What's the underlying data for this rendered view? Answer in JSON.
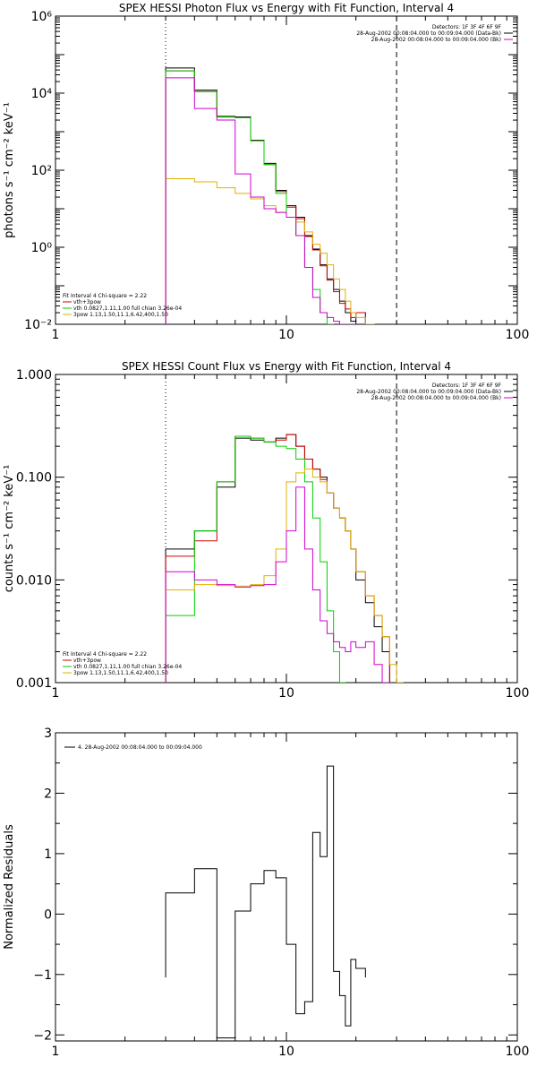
{
  "charts": [
    {
      "id": "photon",
      "title": "SPEX HESSI Photon Flux vs Energy with Fit Function, Interval 4",
      "ylabel": "photons s⁻¹ cm⁻² keV⁻¹",
      "xlim": [
        1,
        100
      ],
      "ylim": [
        0.01,
        1000000
      ],
      "yscale": "log",
      "xticks": [
        "1",
        "10",
        "100"
      ],
      "yticks": [
        {
          "v": 0.01,
          "label": "10⁻²"
        },
        {
          "v": 1,
          "label": "10⁰"
        },
        {
          "v": 100,
          "label": "10²"
        },
        {
          "v": 10000,
          "label": "10⁴"
        },
        {
          "v": 1000000,
          "label": "10⁶"
        }
      ],
      "legend_top": [
        "Detectors: 1F 3F 4F 6F 9F",
        "28-Aug-2002 00:08:04.000 to 00:09:04.000 (Data-Bk)",
        "28-Aug-2002 00:08:04.000 to 00:09:04.000 (Bk)"
      ],
      "legend_bottom": [
        "Fit Interval 4   Chi-square = 2.22",
        "vth+3pow",
        "vth 0.0827,1.11,1.00  full chian 3.26e-04",
        "3pow 1.13,1.50,11.1,6.42,400,1.50"
      ]
    },
    {
      "id": "count",
      "title": "SPEX HESSI Count Flux vs Energy with Fit Function, Interval 4",
      "ylabel": "counts s⁻¹ cm⁻² keV⁻¹",
      "xlim": [
        1,
        100
      ],
      "ylim": [
        0.001,
        1
      ],
      "yscale": "log",
      "xticks": [
        "1",
        "10",
        "100"
      ],
      "yticks": [
        {
          "v": 0.001,
          "label": "0.001"
        },
        {
          "v": 0.01,
          "label": "0.010"
        },
        {
          "v": 0.1,
          "label": "0.100"
        },
        {
          "v": 1,
          "label": "1.000"
        }
      ],
      "legend_top": [
        "Detectors: 1F 3F 4F 6F 9F",
        "28-Aug-2002 00:08:04.000 to 00:09:04.000 (Data-Bk)",
        "28-Aug-2002 00:08:04.000 to 00:09:04.000 (Bk)"
      ],
      "legend_bottom": [
        "Fit Interval 4   Chi-square = 2.22",
        "vth+3pow",
        "vth 0.0827,1.11,1.00  full chian 3.26e-04",
        "3pow 1.13,1.50,11.1,6.42,400,1.50"
      ]
    },
    {
      "id": "resid",
      "title": "",
      "ylabel": "Normalized Residuals",
      "xlim": [
        1,
        100
      ],
      "ylim": [
        -2.1,
        3
      ],
      "yscale": "linear",
      "xticks": [
        "1",
        "10",
        "100"
      ],
      "yticks": [
        {
          "v": -2,
          "label": "−2"
        },
        {
          "v": -1,
          "label": "−1"
        },
        {
          "v": 0,
          "label": "0"
        },
        {
          "v": 1,
          "label": "1"
        },
        {
          "v": 2,
          "label": "2"
        },
        {
          "v": 3,
          "label": "3"
        }
      ],
      "legend_top": [
        "4. 28-Aug-2002 00:08:04.000 to 00:09:04.000"
      ],
      "legend_bottom": []
    }
  ],
  "chart_data": [
    {
      "type": "line",
      "title": "SPEX HESSI Photon Flux vs Energy with Fit Function, Interval 4",
      "ylabel": "photons s⁻¹ cm⁻² keV⁻¹",
      "xscale": "log",
      "yscale": "log",
      "xlim": [
        1,
        100
      ],
      "ylim": [
        0.01,
        1000000
      ],
      "bin_edges": [
        3,
        4,
        5,
        6,
        7,
        8,
        9,
        10,
        11,
        12,
        13,
        14,
        15,
        16,
        17,
        18,
        19,
        20,
        22,
        24,
        26,
        28,
        30,
        32
      ],
      "vlines": [
        {
          "x": 3,
          "style": "dotted"
        },
        {
          "x": 30,
          "style": "dashed"
        }
      ],
      "series": [
        {
          "name": "28-Aug-2002 00:08:04.000 to 00:09:04.000 (Data-Bk)",
          "color": "#000000",
          "values": [
            45000,
            12000,
            2500,
            2400,
            600,
            150,
            30,
            12,
            6,
            2,
            0.9,
            0.35,
            0.15,
            0.08,
            0.04,
            0.02,
            0.012,
            0.02
          ]
        },
        {
          "name": "vth+3pow",
          "color": "#d00000",
          "values": [
            38000,
            11000,
            2400,
            2300,
            580,
            140,
            28,
            11,
            5.5,
            1.9,
            0.85,
            0.33,
            0.14,
            0.07,
            0.035,
            0.025,
            0.015,
            0.02,
            0.01
          ]
        },
        {
          "name": "vth 0.0827,1.11,1.00  full chian 3.26e-04",
          "color": "#00d000",
          "values": [
            38000,
            11000,
            2400,
            2300,
            580,
            140,
            25,
            6,
            2,
            0.3,
            0.08,
            0.02,
            0.01
          ]
        },
        {
          "name": "3pow 1.13,1.50,11.1,6.42,400,1.50",
          "color": "#e0b000",
          "values": [
            60,
            50,
            35,
            25,
            18,
            12,
            8,
            6,
            4.5,
            2.5,
            1.2,
            0.7,
            0.35,
            0.15,
            0.08,
            0.04,
            0.02,
            0.015,
            0.01
          ]
        },
        {
          "name": "28-Aug-2002 00:08:04.000 to 00:09:04.000 (Bk)",
          "color": "#d000d0",
          "values": [
            25000,
            4000,
            2000,
            80,
            20,
            10,
            8,
            6,
            2,
            0.3,
            0.05,
            0.02,
            0.015,
            0.012,
            0.01,
            0.01,
            0.01
          ]
        }
      ]
    },
    {
      "type": "line",
      "title": "SPEX HESSI Count Flux vs Energy with Fit Function, Interval 4",
      "ylabel": "counts s⁻¹ cm⁻² keV⁻¹",
      "xscale": "log",
      "yscale": "log",
      "xlim": [
        1,
        100
      ],
      "ylim": [
        0.001,
        1
      ],
      "bin_edges": [
        3,
        4,
        5,
        6,
        7,
        8,
        9,
        10,
        11,
        12,
        13,
        14,
        15,
        16,
        17,
        18,
        19,
        20,
        22,
        24,
        26,
        28,
        30,
        32
      ],
      "vlines": [
        {
          "x": 3,
          "style": "dotted"
        },
        {
          "x": 30,
          "style": "dashed"
        }
      ],
      "series": [
        {
          "name": "28-Aug-2002 00:08:04.000 to 00:09:04.000 (Data-Bk)",
          "color": "#000000",
          "values": [
            0.02,
            0.03,
            0.08,
            0.24,
            0.23,
            0.22,
            0.24,
            0.26,
            0.2,
            0.15,
            0.12,
            0.1,
            0.07,
            0.05,
            0.04,
            0.03,
            0.02,
            0.01,
            0.006,
            0.0035,
            0.002
          ]
        },
        {
          "name": "vth+3pow",
          "color": "#d00000",
          "values": [
            0.017,
            0.024,
            0.09,
            0.25,
            0.24,
            0.22,
            0.23,
            0.26,
            0.2,
            0.15,
            0.12,
            0.095,
            0.07,
            0.05,
            0.04,
            0.03,
            0.02,
            0.012,
            0.007,
            0.0045,
            0.0028
          ]
        },
        {
          "name": "vth 0.0827,1.11,1.00  full chian 3.26e-04",
          "color": "#00d000",
          "values": [
            0.0045,
            0.03,
            0.09,
            0.25,
            0.24,
            0.22,
            0.2,
            0.19,
            0.15,
            0.09,
            0.04,
            0.015,
            0.005,
            0.002,
            0.001
          ]
        },
        {
          "name": "3pow 1.13,1.50,11.1,6.42,400,1.50",
          "color": "#e0b000",
          "values": [
            0.008,
            0.009,
            0.0088,
            0.0087,
            0.009,
            0.011,
            0.02,
            0.09,
            0.11,
            0.12,
            0.1,
            0.09,
            0.07,
            0.05,
            0.04,
            0.03,
            0.02,
            0.012,
            0.007,
            0.0045,
            0.0028,
            0.0015,
            0.001
          ]
        },
        {
          "name": "28-Aug-2002 00:08:04.000 to 00:09:04.000 (Bk)",
          "color": "#d000d0",
          "values": [
            0.012,
            0.01,
            0.009,
            0.0085,
            0.0088,
            0.009,
            0.015,
            0.03,
            0.08,
            0.02,
            0.008,
            0.004,
            0.003,
            0.0025,
            0.0022,
            0.002,
            0.0025,
            0.0022,
            0.0025,
            0.0015,
            0.001
          ]
        }
      ]
    },
    {
      "type": "line",
      "title": "",
      "ylabel": "Normalized Residuals",
      "xscale": "log",
      "yscale": "linear",
      "xlim": [
        1,
        100
      ],
      "ylim": [
        -2.1,
        3
      ],
      "bin_edges": [
        3,
        4,
        5,
        6,
        7,
        8,
        9,
        10,
        11,
        12,
        13,
        14,
        15,
        16,
        17,
        18,
        19,
        20,
        22,
        24,
        26,
        28,
        30
      ],
      "series": [
        {
          "name": "4. 28-Aug-2002 00:08:04.000 to 00:09:04.000",
          "color": "#000000",
          "values": [
            0.35,
            0.75,
            -2.05,
            0.05,
            0.5,
            0.72,
            0.6,
            -0.5,
            -1.65,
            -1.45,
            1.35,
            0.95,
            2.45,
            -0.95,
            -1.35,
            -1.85,
            -0.75,
            -0.9
          ]
        }
      ]
    }
  ]
}
